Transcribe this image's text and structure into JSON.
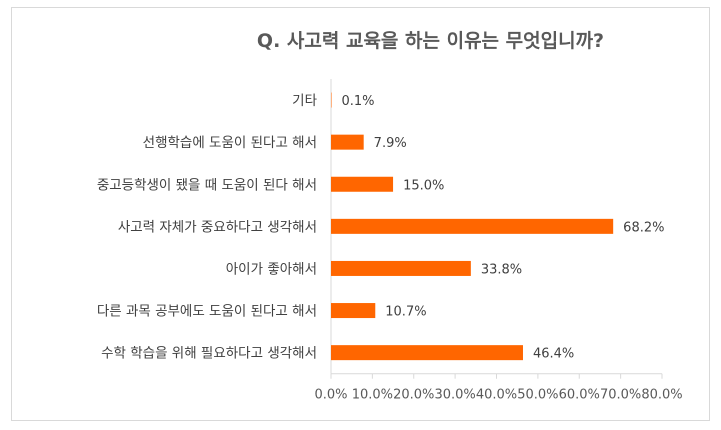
{
  "chart_data": {
    "type": "bar",
    "orientation": "horizontal",
    "title": "Q. 사고력 교육을 하는 이유는 무엇입니까?",
    "categories": [
      "기타",
      "선행학습에 도움이 된다고 해서",
      "중고등학생이 됐을 때 도움이 된다 해서",
      "사고력 자체가 중요하다고 생각해서",
      "아이가 좋아해서",
      "다른 과목 공부에도 도움이 된다고 해서",
      "수학 학습을 위해 필요하다고 생각해서"
    ],
    "values": [
      0.1,
      7.9,
      15.0,
      68.2,
      33.8,
      10.7,
      46.4
    ],
    "value_labels": [
      "0.1%",
      "7.9%",
      "15.0%",
      "68.2%",
      "33.8%",
      "10.7%",
      "46.4%"
    ],
    "xlim": [
      0,
      80
    ],
    "xticks": [
      "0.0%",
      "10.0%",
      "20.0%",
      "30.0%",
      "40.0%",
      "50.0%",
      "60.0%",
      "70.0%",
      "80.0%"
    ],
    "xlabel": "",
    "ylabel": "",
    "grid": false,
    "bar_color": "#ff6600"
  }
}
